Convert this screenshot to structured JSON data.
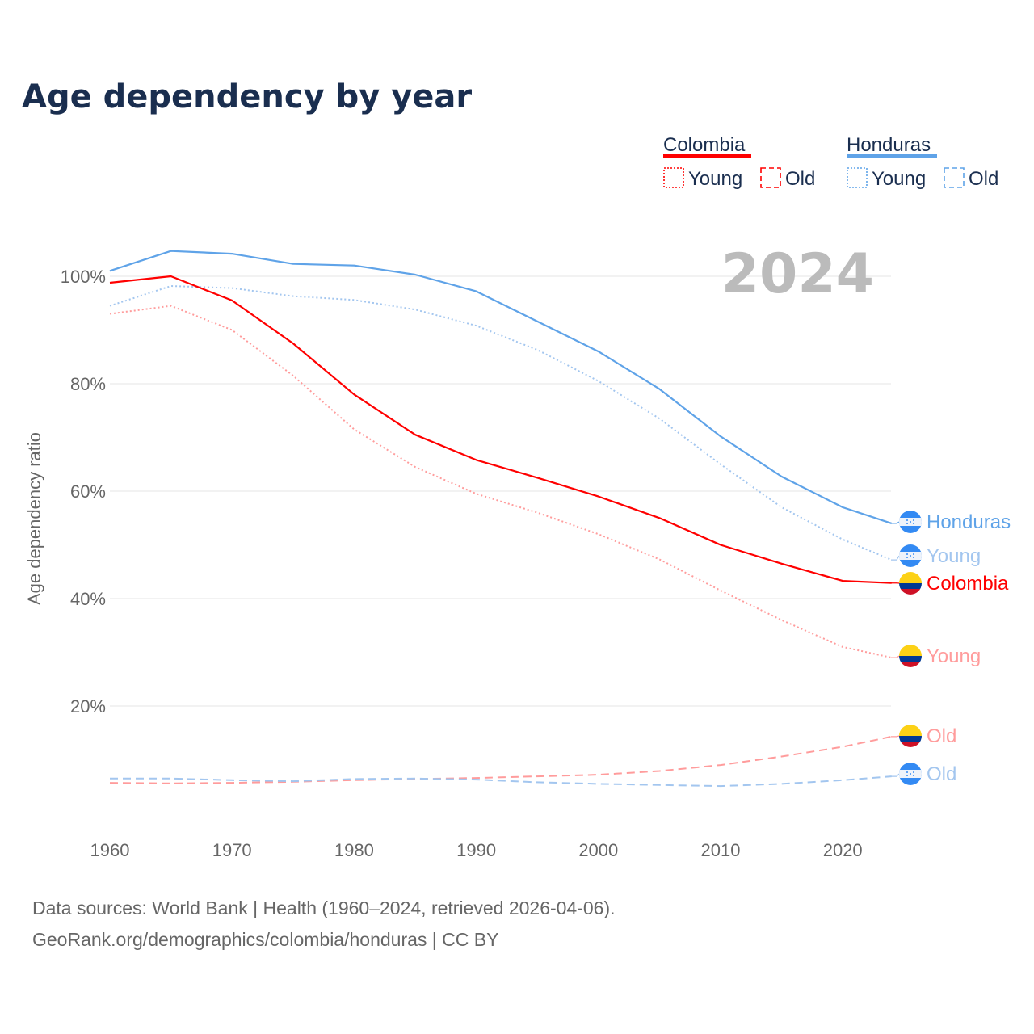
{
  "chart_data": {
    "type": "line",
    "title": "Age dependency by year",
    "ylabel": "Age dependency ratio",
    "xlabel": "",
    "year_label": "2024",
    "xlim": [
      1960,
      2024
    ],
    "ylim": [
      0,
      110
    ],
    "x_ticks": [
      "1960",
      "1970",
      "1980",
      "1990",
      "2000",
      "2010",
      "2020"
    ],
    "y_ticks": [
      "20%",
      "40%",
      "60%",
      "80%",
      "100%"
    ],
    "grid": true,
    "legend": {
      "placement": "top-right",
      "groups": [
        {
          "name": "Colombia",
          "color": "#ff0000",
          "items": [
            "Young",
            "Old"
          ]
        },
        {
          "name": "Honduras",
          "color": "#5fa3e8",
          "items": [
            "Young",
            "Old"
          ]
        }
      ]
    },
    "x": [
      1960,
      1965,
      1970,
      1975,
      1980,
      1985,
      1990,
      1995,
      2000,
      2005,
      2010,
      2015,
      2020,
      2024
    ],
    "series": [
      {
        "name": "Honduras",
        "label": "Honduras",
        "country": "Honduras",
        "style": "solid",
        "color": "#5fa3e8",
        "values": [
          101,
          104.7,
          104.2,
          102.3,
          102,
          100.3,
          97.2,
          91.6,
          86,
          79,
          70.2,
          62.7,
          57,
          54
        ]
      },
      {
        "name": "Honduras Young",
        "label": "Young",
        "country": "Honduras",
        "style": "dotted",
        "color": "#a3c6ef",
        "values": [
          94.5,
          98.2,
          97.8,
          96.3,
          95.6,
          93.8,
          90.8,
          86.3,
          80.5,
          73.5,
          65,
          57,
          51,
          47.2
        ]
      },
      {
        "name": "Colombia",
        "label": "Colombia",
        "country": "Colombia",
        "style": "solid",
        "color": "#ff0000",
        "values": [
          98.8,
          100,
          95.5,
          87.5,
          78,
          70.5,
          65.8,
          62.5,
          59,
          55,
          50,
          46.5,
          43.3,
          42.9
        ]
      },
      {
        "name": "Colombia Young",
        "label": "Young",
        "country": "Colombia",
        "style": "dotted",
        "color": "#ff9c9c",
        "values": [
          93,
          94.5,
          90,
          81.5,
          71.5,
          64.5,
          59.5,
          56,
          52,
          47.3,
          41.5,
          36,
          31,
          29
        ]
      },
      {
        "name": "Colombia Old",
        "label": "Old",
        "country": "Colombia",
        "style": "dashed",
        "color": "#ff9c9c",
        "values": [
          5.7,
          5.6,
          5.7,
          5.9,
          6.2,
          6.4,
          6.6,
          6.9,
          7.2,
          7.9,
          9,
          10.6,
          12.4,
          14.3
        ]
      },
      {
        "name": "Honduras Old",
        "label": "Old",
        "country": "Honduras",
        "style": "dashed",
        "color": "#a3c6ef",
        "values": [
          6.5,
          6.5,
          6.2,
          6,
          6.4,
          6.5,
          6.3,
          5.8,
          5.5,
          5.3,
          5.1,
          5.5,
          6.2,
          6.9
        ]
      }
    ]
  },
  "source": {
    "line1": "Data sources: World Bank | Health (1960–2024, retrieved 2026-04-06).",
    "line2": "GeoRank.org/demographics/colombia/honduras | CC BY"
  }
}
